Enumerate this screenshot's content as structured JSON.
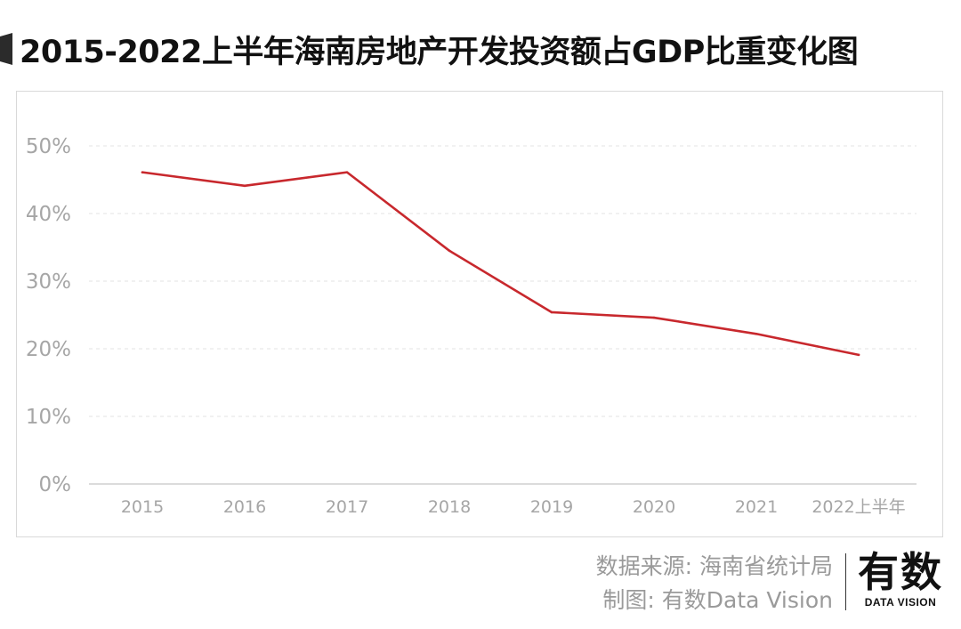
{
  "title": "2015-2022上半年海南房地产开发投资额占GDP比重变化图",
  "colors": {
    "title_marker": "#2b2b2b",
    "line": "#c8282d",
    "grid": "#e3e3e3",
    "axis": "#cfcfcf",
    "tick_text": "#a6a6a6"
  },
  "chart_data": {
    "type": "line",
    "title": "2015-2022上半年海南房地产开发投资额占GDP比重变化图",
    "xlabel": "",
    "ylabel": "",
    "categories": [
      "2015",
      "2016",
      "2017",
      "2018",
      "2019",
      "2020",
      "2021",
      "2022上半年"
    ],
    "series": [
      {
        "name": "房地产开发投资额占GDP比重",
        "values": [
          46.1,
          44.1,
          46.1,
          34.5,
          25.4,
          24.6,
          22.2,
          19.1
        ]
      }
    ],
    "ylim": [
      0,
      50
    ],
    "yticks": [
      0,
      10,
      20,
      30,
      40,
      50
    ],
    "ytick_labels": [
      "0%",
      "10%",
      "20%",
      "30%",
      "40%",
      "50%"
    ],
    "grid": true
  },
  "footer": {
    "source": "数据来源: 海南省统计局",
    "credit": "制图: 有数Data Vision"
  },
  "logo": {
    "cn": "有数",
    "en": "DATA VISION"
  }
}
